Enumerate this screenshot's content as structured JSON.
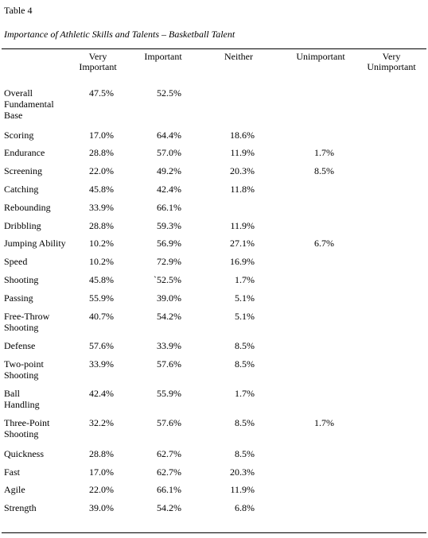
{
  "table": {
    "label": "Table 4",
    "title": "Importance of Athletic Skills and Talents – Basketball Talent",
    "headers": [
      "Very\nImportant",
      "Important",
      "Neither",
      "Unimportant",
      "Very\nUnimportant"
    ],
    "rows": [
      {
        "skill": "Overall\nFundamental\nBase",
        "vi": "47.5%",
        "i": "52.5%",
        "n": "",
        "u": "",
        "vu": ""
      },
      {
        "skill": "Scoring",
        "vi": "17.0%",
        "i": "64.4%",
        "n": "18.6%",
        "u": "",
        "vu": ""
      },
      {
        "skill": "Endurance",
        "vi": "28.8%",
        "i": "57.0%",
        "n": "11.9%",
        "u": "1.7%",
        "vu": ""
      },
      {
        "skill": "Screening",
        "vi": "22.0%",
        "i": "49.2%",
        "n": "20.3%",
        "u": "8.5%",
        "vu": ""
      },
      {
        "skill": "Catching",
        "vi": "45.8%",
        "i": "42.4%",
        "n": "11.8%",
        "u": "",
        "vu": ""
      },
      {
        "skill": "Rebounding",
        "vi": "33.9%",
        "i": "66.1%",
        "n": "",
        "u": "",
        "vu": ""
      },
      {
        "skill": "Dribbling",
        "vi": "28.8%",
        "i": "59.3%",
        "n": "11.9%",
        "u": "",
        "vu": ""
      },
      {
        "skill": "Jumping Ability",
        "vi": "10.2%",
        "i": "56.9%",
        "n": "27.1%",
        "u": "6.7%",
        "vu": ""
      },
      {
        "skill": "Speed",
        "vi": "10.2%",
        "i": "72.9%",
        "n": "16.9%",
        "u": "",
        "vu": ""
      },
      {
        "skill": "Shooting",
        "vi": "45.8%",
        "i": "`52.5%",
        "n": "1.7%",
        "u": "",
        "vu": ""
      },
      {
        "skill": "Passing",
        "vi": "55.9%",
        "i": "39.0%",
        "n": "5.1%",
        "u": "",
        "vu": ""
      },
      {
        "skill": "Free-Throw\nShooting",
        "vi": "40.7%",
        "i": "54.2%",
        "n": "5.1%",
        "u": "",
        "vu": ""
      },
      {
        "skill": "Defense",
        "vi": "57.6%",
        "i": "33.9%",
        "n": "8.5%",
        "u": "",
        "vu": ""
      },
      {
        "skill": "Two-point\nShooting",
        "vi": "33.9%",
        "i": "57.6%",
        "n": "8.5%",
        "u": "",
        "vu": ""
      },
      {
        "skill": "Ball\nHandling",
        "vi": "42.4%",
        "i": "55.9%",
        "n": "1.7%",
        "u": "",
        "vu": ""
      },
      {
        "skill": "Three-Point\nShooting",
        "vi": "32.2%",
        "i": "57.6%",
        "n": "8.5%",
        "u": "1.7%",
        "vu": ""
      },
      {
        "skill": "Quickness",
        "vi": "28.8%",
        "i": "62.7%",
        "n": "8.5%",
        "u": "",
        "vu": ""
      },
      {
        "skill": "Fast",
        "vi": "17.0%",
        "i": "62.7%",
        "n": "20.3%",
        "u": "",
        "vu": ""
      },
      {
        "skill": "Agile",
        "vi": "22.0%",
        "i": "66.1%",
        "n": "11.9%",
        "u": "",
        "vu": ""
      },
      {
        "skill": "Strength",
        "vi": "39.0%",
        "i": "54.2%",
        "n": "6.8%",
        "u": "",
        "vu": ""
      }
    ]
  }
}
